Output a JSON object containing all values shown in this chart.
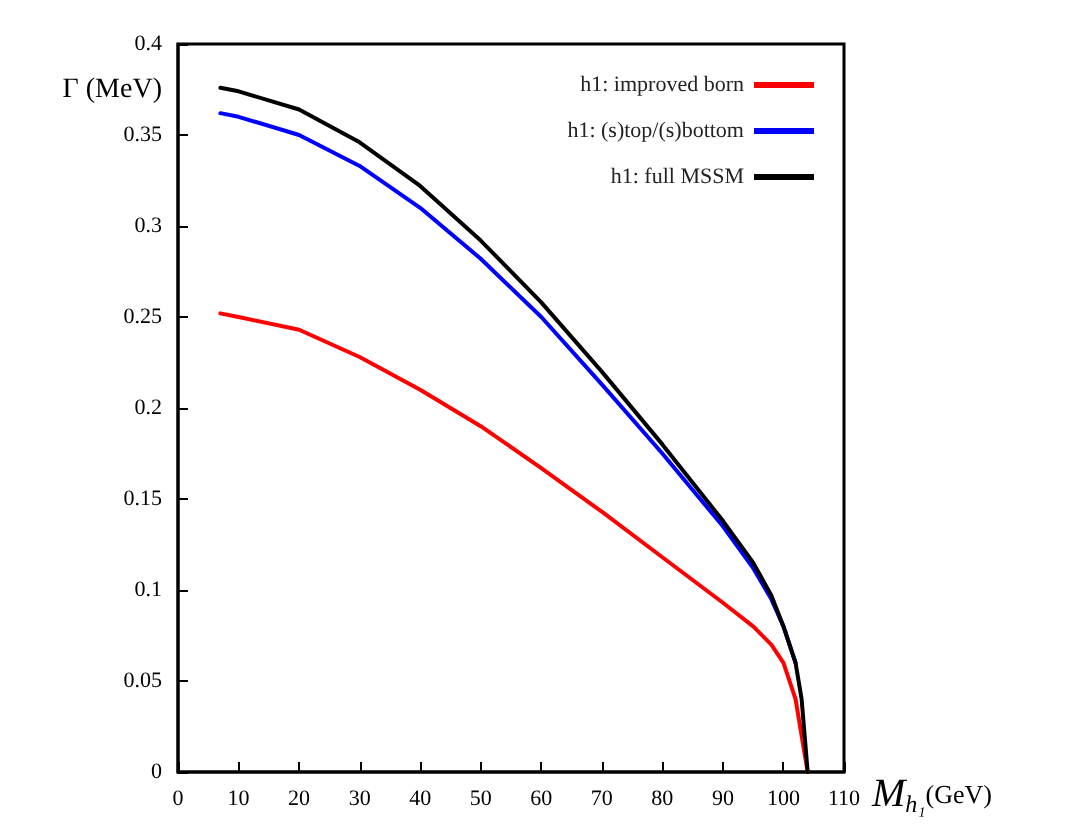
{
  "chart_data": {
    "type": "line",
    "xlabel": "M$_{h₁}$(GeV)",
    "ylabel": "Γ (MeV)",
    "xlim": [
      0,
      110
    ],
    "xticks": [
      0,
      10,
      20,
      30,
      40,
      50,
      60,
      70,
      80,
      90,
      100,
      110
    ],
    "ylim": [
      0,
      0.4
    ],
    "yticks": [
      0,
      0.05,
      0.1,
      0.15,
      0.2,
      0.25,
      0.3,
      0.35,
      0.4
    ],
    "grid": false,
    "legend": "top right",
    "marker": "none",
    "line_style": "solid",
    "x": [
      7,
      10,
      20,
      30,
      40,
      50,
      60,
      70,
      80,
      90,
      95,
      98,
      100,
      102,
      103,
      104
    ],
    "series": [
      {
        "name": "h1: improved born",
        "color": "#ff0000",
        "values": [
          0.252,
          0.25,
          0.243,
          0.228,
          0.21,
          0.19,
          0.167,
          0.143,
          0.118,
          0.093,
          0.08,
          0.07,
          0.06,
          0.04,
          0.02,
          0
        ]
      },
      {
        "name": "h1: (s)top/(s)bottom",
        "color": "#0000ff",
        "values": [
          0.362,
          0.36,
          0.35,
          0.333,
          0.31,
          0.282,
          0.25,
          0.213,
          0.175,
          0.135,
          0.112,
          0.095,
          0.08,
          0.06,
          null,
          null
        ]
      },
      {
        "name": "h1: full MSSM",
        "color": "#000000",
        "values": [
          0.376,
          0.374,
          0.364,
          0.346,
          0.322,
          0.292,
          0.258,
          0.22,
          0.18,
          0.138,
          0.115,
          0.097,
          0.08,
          0.06,
          0.04,
          0
        ]
      }
    ]
  }
}
